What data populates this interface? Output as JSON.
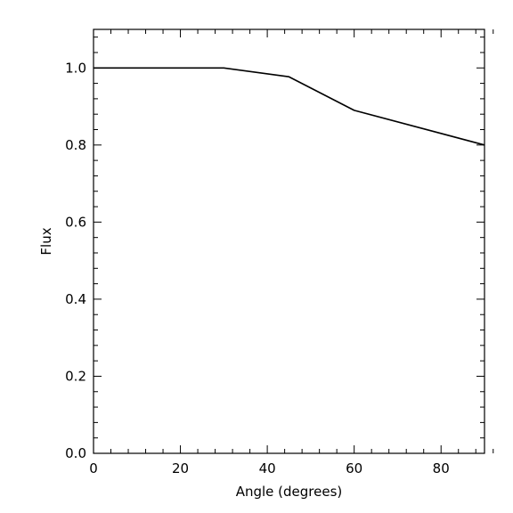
{
  "chart_data": {
    "type": "line",
    "title": "",
    "xlabel": "Angle (degrees)",
    "ylabel": "Flux",
    "xlim": [
      0,
      90
    ],
    "ylim": [
      0.0,
      1.1
    ],
    "grid": false,
    "x_ticks": [
      0,
      20,
      40,
      60,
      80
    ],
    "x_tick_labels": [
      "0",
      "20",
      "40",
      "60",
      "80"
    ],
    "y_ticks": [
      0.0,
      0.2,
      0.4,
      0.6,
      0.8,
      1.0
    ],
    "y_tick_labels": [
      "0.0",
      "0.2",
      "0.4",
      "0.6",
      "0.8",
      "1.0"
    ],
    "x_minor_step": 4,
    "y_minor_step": 0.04,
    "series": [
      {
        "x": [
          0,
          30,
          45,
          60,
          90
        ],
        "y": [
          1.0,
          1.0,
          0.977,
          0.89,
          0.8
        ],
        "color": "#000000"
      }
    ]
  }
}
